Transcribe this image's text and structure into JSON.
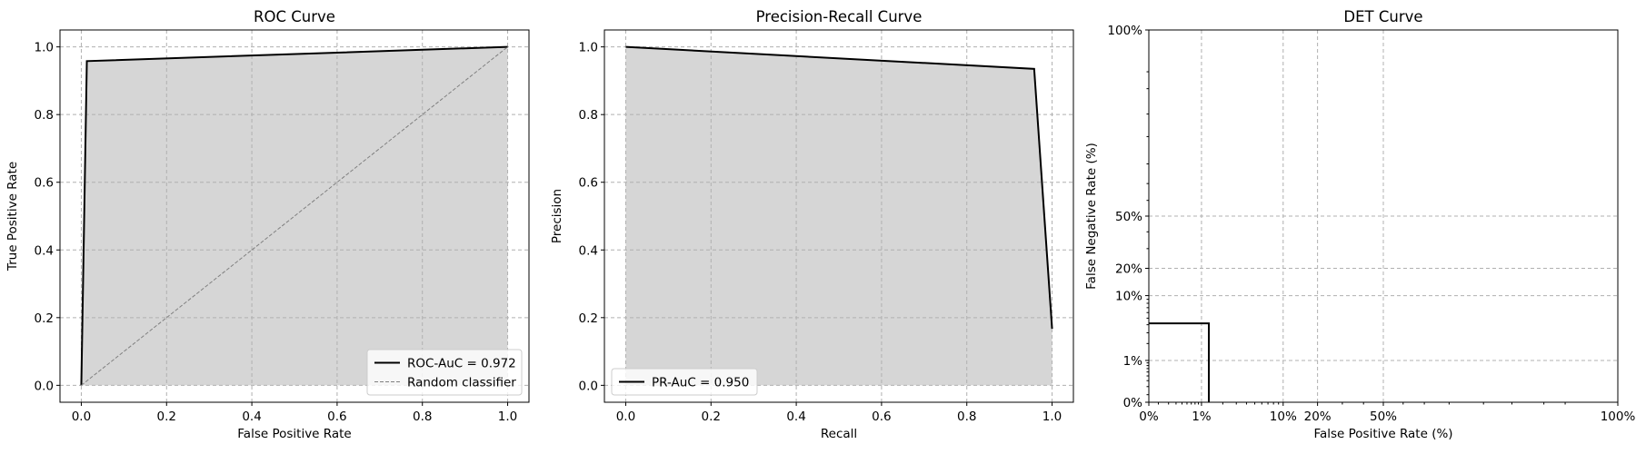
{
  "chart_data": [
    {
      "type": "area",
      "title": "ROC Curve",
      "xlabel": "False Positive Rate",
      "ylabel": "True Positive Rate",
      "xlim": [
        -0.05,
        1.05
      ],
      "ylim": [
        -0.05,
        1.05
      ],
      "xticks": [
        0.0,
        0.2,
        0.4,
        0.6,
        0.8,
        1.0
      ],
      "yticks": [
        0.0,
        0.2,
        0.4,
        0.6,
        0.8,
        1.0
      ],
      "xtick_labels": [
        "0.0",
        "0.2",
        "0.4",
        "0.6",
        "0.8",
        "1.0"
      ],
      "ytick_labels": [
        "0.0",
        "0.2",
        "0.4",
        "0.6",
        "0.8",
        "1.0"
      ],
      "grid": true,
      "legend_position": "lower-right",
      "series": [
        {
          "name": "ROC-AuC = 0.972",
          "style": "solid",
          "color": "#000000",
          "filled": true,
          "x": [
            0.0,
            0.013,
            1.0
          ],
          "y": [
            0.0,
            0.958,
            1.0
          ]
        },
        {
          "name": "Random classifier",
          "style": "dashed",
          "color": "#808080",
          "filled": false,
          "x": [
            0.0,
            1.0
          ],
          "y": [
            0.0,
            1.0
          ]
        }
      ]
    },
    {
      "type": "area",
      "title": "Precision-Recall Curve",
      "xlabel": "Recall",
      "ylabel": "Precision",
      "xlim": [
        -0.05,
        1.05
      ],
      "ylim": [
        -0.05,
        1.05
      ],
      "xticks": [
        0.0,
        0.2,
        0.4,
        0.6,
        0.8,
        1.0
      ],
      "yticks": [
        0.0,
        0.2,
        0.4,
        0.6,
        0.8,
        1.0
      ],
      "xtick_labels": [
        "0.0",
        "0.2",
        "0.4",
        "0.6",
        "0.8",
        "1.0"
      ],
      "ytick_labels": [
        "0.0",
        "0.2",
        "0.4",
        "0.6",
        "0.8",
        "1.0"
      ],
      "grid": true,
      "legend_position": "lower-left",
      "series": [
        {
          "name": "PR-AuC = 0.950",
          "style": "solid",
          "color": "#000000",
          "filled": true,
          "x": [
            0.0,
            0.958,
            1.0
          ],
          "y": [
            1.0,
            0.935,
            0.167
          ]
        }
      ]
    },
    {
      "type": "line",
      "title": "DET Curve",
      "xlabel": "False Positive Rate (%)",
      "ylabel": "False Negative Rate (%)",
      "scale": "normal-deviate",
      "xlim": [
        0.00135,
        0.99865
      ],
      "ylim": [
        0.00135,
        0.99865
      ],
      "xticks": [
        0.00135,
        0.01,
        0.1,
        0.2,
        0.5,
        0.99865
      ],
      "yticks": [
        0.00135,
        0.01,
        0.1,
        0.2,
        0.5,
        0.99865
      ],
      "xtick_labels": [
        "0%",
        "1%",
        "10%",
        "20%",
        "50%",
        "100%"
      ],
      "ytick_labels": [
        "0%",
        "1%",
        "10%",
        "20%",
        "50%",
        "100%"
      ],
      "grid": true,
      "series": [
        {
          "style": "solid",
          "color": "#000000",
          "x": [
            0.00135,
            0.0128,
            0.0128
          ],
          "y": [
            0.042,
            0.042,
            0.00135
          ]
        }
      ]
    }
  ],
  "colors": {
    "fill": "#d6d6d6",
    "curve": "#000000",
    "diagonal": "#808080",
    "grid": "#b0b0b0"
  }
}
